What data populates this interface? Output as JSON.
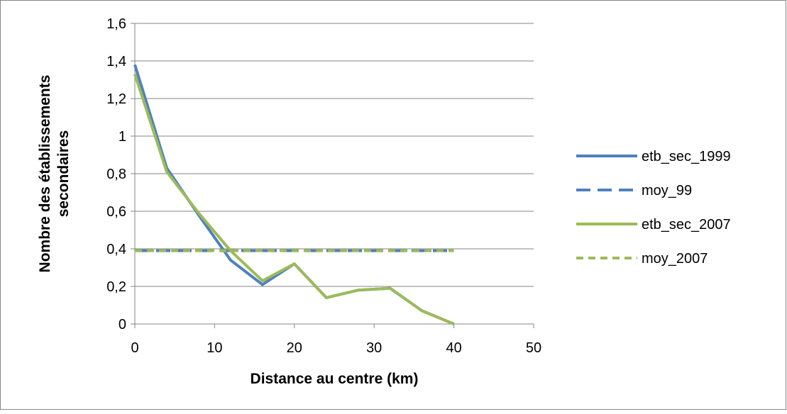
{
  "chart_data": {
    "type": "line",
    "title": "",
    "xlabel": "Distance au centre (km)",
    "ylabel_lines": [
      "Nombre des établissements",
      "secondaires"
    ],
    "xlim": [
      0,
      50
    ],
    "ylim": [
      0,
      1.6
    ],
    "x_ticks": [
      {
        "value": 0,
        "label": "0"
      },
      {
        "value": 10,
        "label": "10"
      },
      {
        "value": 20,
        "label": "20"
      },
      {
        "value": 30,
        "label": "30"
      },
      {
        "value": 40,
        "label": "40"
      },
      {
        "value": 50,
        "label": "50"
      }
    ],
    "y_ticks": [
      {
        "value": 0,
        "label": "0"
      },
      {
        "value": 0.2,
        "label": "0,2"
      },
      {
        "value": 0.4,
        "label": "0,4"
      },
      {
        "value": 0.6,
        "label": "0,6"
      },
      {
        "value": 0.8,
        "label": "0,8"
      },
      {
        "value": 1.0,
        "label": "1"
      },
      {
        "value": 1.2,
        "label": "1,2"
      },
      {
        "value": 1.4,
        "label": "1,4"
      },
      {
        "value": 1.6,
        "label": "1,6"
      }
    ],
    "grid": "horizontal",
    "legend_position": "right",
    "series": [
      {
        "name": "etb_sec_1999",
        "color": "#4f81bd",
        "dash": "solid",
        "x": [
          0,
          4,
          8,
          12,
          16,
          20,
          24,
          28,
          32,
          36,
          40
        ],
        "y": [
          1.38,
          0.83,
          0.58,
          0.34,
          0.21,
          0.32,
          0.14,
          0.18,
          0.19,
          0.07,
          0.0
        ]
      },
      {
        "name": "moy_99",
        "color": "#4f81bd",
        "dash": "long",
        "x": [
          0,
          40
        ],
        "y": [
          0.39,
          0.39
        ]
      },
      {
        "name": "etb_sec_2007",
        "color": "#9bbb59",
        "dash": "solid",
        "x": [
          0,
          4,
          8,
          12,
          16,
          20,
          24,
          28,
          32,
          36,
          40
        ],
        "y": [
          1.33,
          0.81,
          0.59,
          0.39,
          0.23,
          0.32,
          0.14,
          0.18,
          0.19,
          0.07,
          0.0
        ]
      },
      {
        "name": "moy_2007",
        "color": "#9bbb59",
        "dash": "short",
        "x": [
          0,
          40
        ],
        "y": [
          0.39,
          0.39
        ]
      }
    ]
  }
}
